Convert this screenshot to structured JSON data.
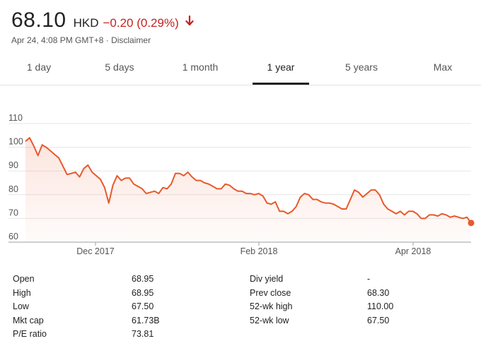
{
  "quote": {
    "price": "68.10",
    "currency": "HKD",
    "change": "−0.20 (0.29%)",
    "change_color": "#c5221f",
    "direction_icon": "arrow-down-icon",
    "timestamp": "Apr 24, 4:08 PM GMT+8 · ",
    "disclaimer": "Disclaimer"
  },
  "tabs": [
    {
      "label": "1 day",
      "active": false
    },
    {
      "label": "5 days",
      "active": false
    },
    {
      "label": "1 month",
      "active": false
    },
    {
      "label": "1 year",
      "active": true
    },
    {
      "label": "5 years",
      "active": false
    },
    {
      "label": "Max",
      "active": false
    }
  ],
  "chart_data": {
    "type": "area",
    "title": "",
    "xlabel": "",
    "ylabel": "",
    "x_ticks": [
      "Dec 2017",
      "Feb 2018",
      "Apr 2018"
    ],
    "y_ticks": [
      "110",
      "100",
      "90",
      "80",
      "70",
      "60"
    ],
    "ylim": [
      60,
      112
    ],
    "grid": true,
    "line_color": "#e8592b",
    "series": [
      {
        "values": [
          102.5,
          104,
          100.5,
          96.5,
          101,
          100,
          98.5,
          97,
          95.5,
          92,
          88.5,
          89,
          89.5,
          87.5,
          91,
          92.5,
          89.5,
          88,
          86.5,
          83,
          76.5,
          84,
          88,
          86,
          87,
          87,
          84.5,
          83.5,
          82.5,
          80.5,
          81,
          81.5,
          80.5,
          83,
          82.5,
          84.5,
          89,
          89,
          88,
          89.5,
          87.5,
          86,
          86,
          85,
          84.5,
          83.5,
          82.5,
          82.5,
          84.5,
          84,
          82.5,
          81.5,
          81.5,
          80.5,
          80.5,
          80,
          80.5,
          79.5,
          76.5,
          76,
          77,
          73,
          73,
          72,
          73,
          75,
          79,
          80.5,
          80,
          78,
          78,
          77,
          76.5,
          76.5,
          76,
          75,
          74,
          74,
          78,
          82,
          81,
          79,
          80.5,
          82,
          82,
          80,
          76,
          74,
          73,
          72,
          73,
          71.5,
          73,
          73,
          72,
          70,
          70,
          71.5,
          71.5,
          71,
          72,
          71.5,
          70.5,
          71,
          70.5,
          70,
          70.5,
          68.1
        ]
      }
    ]
  },
  "stats_left": [
    {
      "label": "Open",
      "value": "68.95"
    },
    {
      "label": "High",
      "value": "68.95"
    },
    {
      "label": "Low",
      "value": "67.50"
    },
    {
      "label": "Mkt cap",
      "value": "61.73B"
    },
    {
      "label": "P/E ratio",
      "value": "73.81"
    }
  ],
  "stats_right": [
    {
      "label": "Div yield",
      "value": "-"
    },
    {
      "label": "Prev close",
      "value": "68.30"
    },
    {
      "label": "52-wk high",
      "value": "110.00"
    },
    {
      "label": "52-wk low",
      "value": "67.50"
    }
  ]
}
